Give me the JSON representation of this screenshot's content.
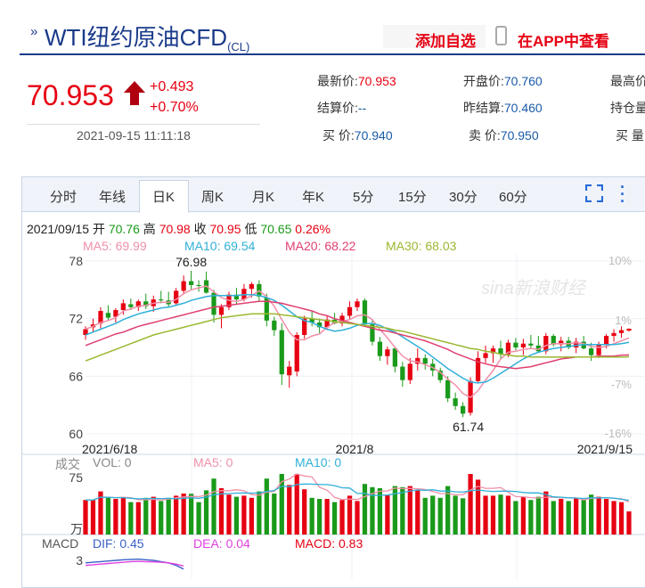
{
  "header": {
    "title_main": "WTI纽约原油CFD",
    "title_code": "(CL)",
    "add_favorite": "添加自选",
    "app_view": "在APP中查看"
  },
  "quote": {
    "price": "70.953",
    "change": "+0.493",
    "change_pct": "+0.70%",
    "time": "2021-09-15 11:11:18",
    "fields": {
      "latest_label": "最新价:",
      "latest_value": "70.953",
      "settle_label": "结算价:",
      "settle_value": "--",
      "buy_label": "买  价:",
      "buy_value": "70.940",
      "open_label": "开盘价:",
      "open_value": "70.760",
      "prev_settle_label": "昨结算:",
      "prev_settle_value": "70.460",
      "sell_label": "卖  价:",
      "sell_value": "70.950",
      "high_label": "最高价",
      "oi_label": "持仓量",
      "buy_vol_label": "买  量"
    }
  },
  "tabs": [
    "分时",
    "年线",
    "日K",
    "周K",
    "月K",
    "年K",
    "5分",
    "15分",
    "30分",
    "60分"
  ],
  "active_tab": "日K",
  "info_line": {
    "date": "2021/09/15",
    "open_label": "开",
    "open": "70.76",
    "high_label": "高",
    "high": "70.98",
    "close_label": "收",
    "close": "70.95",
    "low_label": "低",
    "low": "70.65",
    "pct": "0.26%"
  },
  "ma_line": {
    "ma5": "MA5: 69.99",
    "ma10": "MA10: 69.54",
    "ma20": "MA20: 68.22",
    "ma30": "MA30: 68.03"
  },
  "vol_line": {
    "label": "成交",
    "vol": "VOL: 0",
    "ma5": "MA5: 0",
    "ma10": "MA10: 0"
  },
  "macd_line": {
    "label": "MACD",
    "dif": "DIF: 0.45",
    "dea": "DEA: 0.04",
    "macd": "MACD: 0.83"
  },
  "watermark": "sina新浪财经",
  "colors": {
    "up": "#e60012",
    "down": "#1a9a1a",
    "ma5": "#f090a8",
    "ma10": "#30b0d8",
    "ma20": "#e04070",
    "ma30": "#9ab830",
    "accent": "#1a3a8a"
  },
  "chart_data": {
    "type": "candlestick",
    "y_ticks": [
      "78",
      "72",
      "66",
      "60"
    ],
    "ylim": [
      60,
      78
    ],
    "pct_ticks": [
      "10%",
      "1%",
      "-7%",
      "-16%"
    ],
    "x_ticks": [
      "2021/6/18",
      "2021/8",
      "2021/9/15"
    ],
    "annotations": {
      "max": "76.98",
      "min": "61.74"
    },
    "vol_y_ticks": [
      "75",
      "万"
    ],
    "macd_y_ticks": [
      "3"
    ],
    "candles": [
      {
        "o": 70.3,
        "h": 71.2,
        "l": 69.8,
        "c": 70.9
      },
      {
        "o": 71.1,
        "h": 72.0,
        "l": 70.6,
        "c": 71.4
      },
      {
        "o": 71.5,
        "h": 73.2,
        "l": 71.0,
        "c": 72.8
      },
      {
        "o": 72.6,
        "h": 73.4,
        "l": 71.8,
        "c": 72.1
      },
      {
        "o": 72.2,
        "h": 73.1,
        "l": 71.6,
        "c": 72.9
      },
      {
        "o": 72.9,
        "h": 74.0,
        "l": 72.4,
        "c": 73.6
      },
      {
        "o": 73.5,
        "h": 74.1,
        "l": 72.9,
        "c": 73.2
      },
      {
        "o": 73.2,
        "h": 74.0,
        "l": 72.8,
        "c": 73.8
      },
      {
        "o": 73.8,
        "h": 74.6,
        "l": 73.0,
        "c": 73.3
      },
      {
        "o": 73.3,
        "h": 74.4,
        "l": 72.7,
        "c": 74.0
      },
      {
        "o": 74.0,
        "h": 74.9,
        "l": 73.6,
        "c": 73.9
      },
      {
        "o": 73.9,
        "h": 74.8,
        "l": 73.2,
        "c": 73.5
      },
      {
        "o": 73.6,
        "h": 75.2,
        "l": 73.4,
        "c": 74.9
      },
      {
        "o": 74.9,
        "h": 76.5,
        "l": 74.5,
        "c": 75.9
      },
      {
        "o": 75.9,
        "h": 76.98,
        "l": 75.0,
        "c": 75.5
      },
      {
        "o": 75.5,
        "h": 76.0,
        "l": 74.8,
        "c": 75.4
      },
      {
        "o": 76.0,
        "h": 76.9,
        "l": 74.6,
        "c": 74.7
      },
      {
        "o": 74.7,
        "h": 75.0,
        "l": 71.6,
        "c": 72.4
      },
      {
        "o": 72.4,
        "h": 73.5,
        "l": 71.0,
        "c": 73.2
      },
      {
        "o": 73.2,
        "h": 74.8,
        "l": 72.9,
        "c": 74.5
      },
      {
        "o": 74.5,
        "h": 75.2,
        "l": 73.5,
        "c": 74.0
      },
      {
        "o": 74.0,
        "h": 75.6,
        "l": 73.8,
        "c": 75.1
      },
      {
        "o": 75.1,
        "h": 75.8,
        "l": 74.2,
        "c": 75.6
      },
      {
        "o": 75.6,
        "h": 76.0,
        "l": 73.8,
        "c": 74.3
      },
      {
        "o": 74.2,
        "h": 74.6,
        "l": 71.2,
        "c": 71.8
      },
      {
        "o": 71.8,
        "h": 72.2,
        "l": 70.2,
        "c": 70.8
      },
      {
        "o": 70.8,
        "h": 71.5,
        "l": 65.1,
        "c": 66.2
      },
      {
        "o": 66.1,
        "h": 67.6,
        "l": 64.8,
        "c": 67.0
      },
      {
        "o": 66.5,
        "h": 70.6,
        "l": 66.0,
        "c": 70.3
      },
      {
        "o": 70.3,
        "h": 72.3,
        "l": 69.9,
        "c": 72.0
      },
      {
        "o": 72.0,
        "h": 72.8,
        "l": 71.2,
        "c": 71.6
      },
      {
        "o": 71.6,
        "h": 72.0,
        "l": 70.5,
        "c": 71.1
      },
      {
        "o": 71.1,
        "h": 72.3,
        "l": 70.8,
        "c": 71.9
      },
      {
        "o": 71.9,
        "h": 72.6,
        "l": 71.4,
        "c": 71.5
      },
      {
        "o": 71.5,
        "h": 72.6,
        "l": 71.2,
        "c": 72.3
      },
      {
        "o": 72.3,
        "h": 73.8,
        "l": 72.0,
        "c": 73.2
      },
      {
        "o": 73.2,
        "h": 74.1,
        "l": 72.8,
        "c": 73.8
      },
      {
        "o": 73.9,
        "h": 74.1,
        "l": 71.2,
        "c": 71.4
      },
      {
        "o": 71.4,
        "h": 71.8,
        "l": 69.2,
        "c": 69.6
      },
      {
        "o": 69.6,
        "h": 70.1,
        "l": 67.6,
        "c": 68.1
      },
      {
        "o": 68.1,
        "h": 69.1,
        "l": 67.2,
        "c": 68.8
      },
      {
        "o": 68.9,
        "h": 69.1,
        "l": 66.4,
        "c": 67.0
      },
      {
        "o": 67.0,
        "h": 67.5,
        "l": 64.9,
        "c": 65.6
      },
      {
        "o": 65.6,
        "h": 67.9,
        "l": 65.2,
        "c": 67.3
      },
      {
        "o": 67.3,
        "h": 68.9,
        "l": 66.6,
        "c": 67.9
      },
      {
        "o": 67.9,
        "h": 68.3,
        "l": 66.7,
        "c": 67.3
      },
      {
        "o": 67.3,
        "h": 67.8,
        "l": 66.0,
        "c": 66.6
      },
      {
        "o": 66.6,
        "h": 66.9,
        "l": 65.3,
        "c": 65.6
      },
      {
        "o": 65.6,
        "h": 66.0,
        "l": 63.3,
        "c": 63.7
      },
      {
        "o": 63.7,
        "h": 64.3,
        "l": 62.5,
        "c": 62.9
      },
      {
        "o": 62.9,
        "h": 63.3,
        "l": 61.74,
        "c": 62.1
      },
      {
        "o": 62.2,
        "h": 65.9,
        "l": 61.9,
        "c": 65.5
      },
      {
        "o": 65.5,
        "h": 68.6,
        "l": 65.3,
        "c": 67.9
      },
      {
        "o": 67.9,
        "h": 69.2,
        "l": 67.4,
        "c": 68.4
      },
      {
        "o": 68.4,
        "h": 69.2,
        "l": 67.4,
        "c": 68.9
      },
      {
        "o": 68.9,
        "h": 69.7,
        "l": 67.8,
        "c": 68.3
      },
      {
        "o": 68.3,
        "h": 69.8,
        "l": 68.0,
        "c": 69.5
      },
      {
        "o": 69.5,
        "h": 70.0,
        "l": 68.7,
        "c": 69.0
      },
      {
        "o": 69.0,
        "h": 69.9,
        "l": 68.2,
        "c": 69.4
      },
      {
        "o": 69.4,
        "h": 70.3,
        "l": 68.9,
        "c": 69.2
      },
      {
        "o": 69.2,
        "h": 70.2,
        "l": 68.5,
        "c": 68.6
      },
      {
        "o": 68.6,
        "h": 70.5,
        "l": 68.3,
        "c": 70.2
      },
      {
        "o": 70.2,
        "h": 70.4,
        "l": 69.1,
        "c": 69.3
      },
      {
        "o": 69.3,
        "h": 70.1,
        "l": 68.6,
        "c": 69.7
      },
      {
        "o": 69.7,
        "h": 70.1,
        "l": 68.8,
        "c": 69.0
      },
      {
        "o": 69.0,
        "h": 70.0,
        "l": 68.4,
        "c": 69.6
      },
      {
        "o": 69.6,
        "h": 70.2,
        "l": 68.8,
        "c": 68.9
      },
      {
        "o": 68.9,
        "h": 69.5,
        "l": 67.6,
        "c": 68.2
      },
      {
        "o": 68.2,
        "h": 69.6,
        "l": 67.9,
        "c": 69.3
      },
      {
        "o": 69.3,
        "h": 70.4,
        "l": 68.9,
        "c": 70.2
      },
      {
        "o": 70.2,
        "h": 70.9,
        "l": 69.6,
        "c": 70.5
      },
      {
        "o": 70.5,
        "h": 71.2,
        "l": 70.0,
        "c": 70.8
      },
      {
        "o": 70.76,
        "h": 70.98,
        "l": 70.65,
        "c": 70.95
      }
    ],
    "ma_series": [
      {
        "name": "MA5",
        "values": [
          70.9,
          71.2,
          71.6,
          71.8,
          72.1,
          72.8,
          73.0,
          73.3,
          73.4,
          73.6,
          73.7,
          73.7,
          74.0,
          74.6,
          75.0,
          75.2,
          75.4,
          74.8,
          74.2,
          73.9,
          73.8,
          74.0,
          74.4,
          74.9,
          74.3,
          73.3,
          71.9,
          70.6,
          69.8,
          69.8,
          70.2,
          70.4,
          71.1,
          71.6,
          71.7,
          71.9,
          72.3,
          72.4,
          71.9,
          70.9,
          70.0,
          69.0,
          68.1,
          67.6,
          67.5,
          67.2,
          66.9,
          66.4,
          65.7,
          65.1,
          64.2,
          63.8,
          64.5,
          65.6,
          66.6,
          67.8,
          68.5,
          68.6,
          68.8,
          68.9,
          68.8,
          69.2,
          69.4,
          69.4,
          69.4,
          69.5,
          69.4,
          69.1,
          69.0,
          69.1,
          69.4,
          69.7,
          69.99
        ]
      },
      {
        "name": "MA10",
        "values": [
          70.3,
          70.6,
          70.9,
          71.2,
          71.5,
          71.9,
          72.2,
          72.5,
          72.7,
          72.9,
          73.1,
          73.2,
          73.4,
          73.6,
          73.9,
          74.1,
          74.3,
          74.4,
          74.4,
          74.4,
          74.4,
          74.5,
          74.5,
          74.4,
          74.2,
          73.9,
          73.4,
          72.8,
          72.2,
          71.8,
          71.6,
          71.2,
          70.9,
          70.7,
          70.8,
          71.0,
          71.3,
          71.5,
          71.5,
          71.3,
          70.9,
          70.6,
          70.1,
          69.6,
          69.1,
          68.6,
          68.0,
          67.4,
          66.8,
          66.3,
          65.8,
          65.4,
          65.3,
          65.4,
          65.8,
          66.3,
          66.8,
          67.3,
          67.8,
          68.2,
          68.5,
          68.7,
          68.9,
          69.0,
          69.1,
          69.2,
          69.3,
          69.3,
          69.3,
          69.3,
          69.3,
          69.4,
          69.54
        ]
      },
      {
        "name": "MA20",
        "values": [
          69.2,
          69.5,
          69.8,
          70.1,
          70.4,
          70.6,
          70.9,
          71.2,
          71.4,
          71.6,
          71.8,
          72.0,
          72.2,
          72.4,
          72.6,
          72.8,
          73.0,
          73.2,
          73.3,
          73.4,
          73.5,
          73.6,
          73.7,
          73.8,
          73.8,
          73.7,
          73.6,
          73.4,
          73.2,
          73.0,
          72.8,
          72.5,
          72.3,
          72.0,
          71.8,
          71.6,
          71.4,
          71.2,
          71.0,
          70.8,
          70.7,
          70.5,
          70.3,
          70.1,
          69.9,
          69.7,
          69.4,
          69.1,
          68.8,
          68.4,
          68.1,
          67.8,
          67.5,
          67.3,
          67.1,
          67.0,
          66.9,
          66.8,
          66.9,
          67.0,
          67.2,
          67.4,
          67.6,
          67.8,
          67.9,
          68.0,
          68.0,
          68.0,
          68.1,
          68.1,
          68.1,
          68.2,
          68.22
        ]
      },
      {
        "name": "MA30",
        "values": [
          67.6,
          67.9,
          68.2,
          68.5,
          68.8,
          69.1,
          69.4,
          69.7,
          70.0,
          70.3,
          70.5,
          70.7,
          70.9,
          71.1,
          71.3,
          71.5,
          71.7,
          71.9,
          72.1,
          72.2,
          72.3,
          72.4,
          72.5,
          72.5,
          72.5,
          72.5,
          72.4,
          72.3,
          72.2,
          72.1,
          72.0,
          71.9,
          71.8,
          71.7,
          71.6,
          71.5,
          71.4,
          71.3,
          71.2,
          71.1,
          71.0,
          70.8,
          70.7,
          70.5,
          70.3,
          70.1,
          69.9,
          69.7,
          69.5,
          69.3,
          69.1,
          68.9,
          68.8,
          68.6,
          68.5,
          68.3,
          68.2,
          68.1,
          68.1,
          68.0,
          68.0,
          68.0,
          68.0,
          68.0,
          68.0,
          68.0,
          68.0,
          68.0,
          68.0,
          68.0,
          68.0,
          68.0,
          68.03
        ]
      }
    ],
    "macd_series": [
      {
        "name": "DIF",
        "values": [
          2.8,
          2.85,
          2.9,
          2.95,
          3.0,
          3.05,
          3.08,
          3.1,
          3.05,
          3.0,
          2.9,
          2.8,
          2.6,
          2.3
        ]
      },
      {
        "name": "DEA",
        "values": [
          2.6,
          2.65,
          2.7,
          2.75,
          2.8,
          2.85,
          2.9,
          2.92,
          2.9,
          2.88,
          2.85,
          2.8,
          2.7,
          2.55
        ]
      }
    ]
  }
}
